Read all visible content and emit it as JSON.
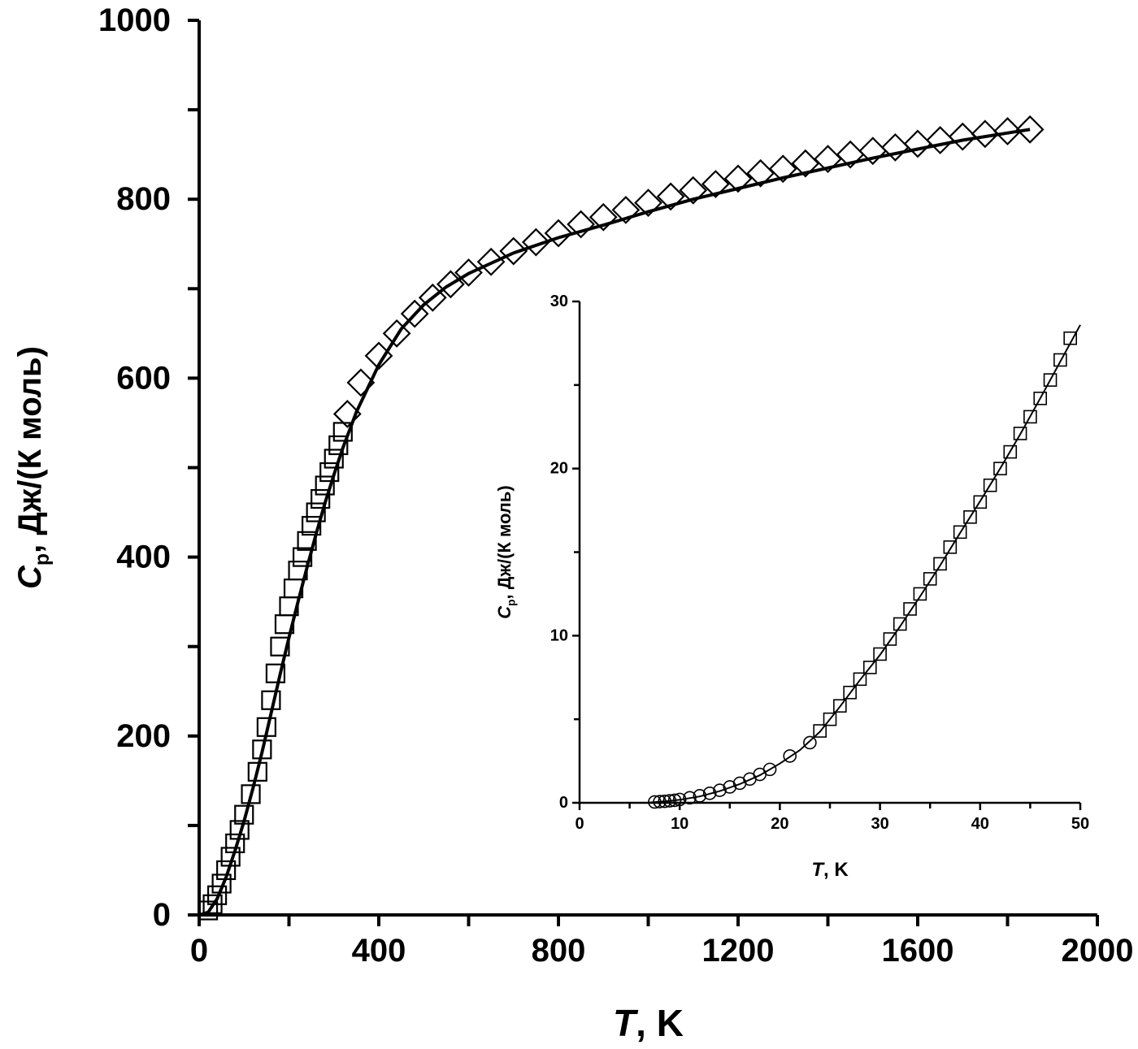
{
  "chart_data": [
    {
      "id": "main",
      "type": "scatter",
      "title": "",
      "xlabel_symbol": "T",
      "xlabel_rest": ", K",
      "ylabel_symbol": "C",
      "ylabel_sub": "p",
      "ylabel_rest": ", Дж/(К моль)",
      "xlim": [
        0,
        2000
      ],
      "ylim": [
        0,
        1000
      ],
      "xticks": [
        0,
        400,
        800,
        1200,
        1600,
        2000
      ],
      "xtick_labels": [
        "0",
        "400",
        "800",
        "1200",
        "1600",
        "2000"
      ],
      "xminor": [
        200,
        600,
        1000,
        1400,
        1800
      ],
      "yticks": [
        0,
        200,
        400,
        600,
        800,
        1000
      ],
      "ytick_labels": [
        "0",
        "200",
        "400",
        "600",
        "800",
        "1000"
      ],
      "yminor": [
        100,
        300,
        500,
        700,
        900
      ],
      "grid": false,
      "series": [
        {
          "marker": "square",
          "x": [
            20,
            30,
            40,
            50,
            60,
            70,
            80,
            90,
            100,
            115,
            130,
            140,
            150,
            160,
            170,
            180,
            190,
            200,
            210,
            220,
            230,
            240,
            250,
            260,
            270,
            280,
            290,
            300,
            310,
            320
          ],
          "y": [
            5,
            12,
            22,
            35,
            50,
            65,
            80,
            95,
            112,
            135,
            160,
            185,
            210,
            240,
            270,
            300,
            325,
            345,
            365,
            385,
            400,
            418,
            435,
            450,
            465,
            480,
            495,
            510,
            525,
            540
          ]
        },
        {
          "marker": "diamond",
          "x": [
            330,
            360,
            400,
            440,
            480,
            520,
            560,
            600,
            650,
            700,
            750,
            800,
            850,
            900,
            950,
            1000,
            1050,
            1100,
            1150,
            1200,
            1250,
            1300,
            1350,
            1400,
            1450,
            1500,
            1550,
            1600,
            1650,
            1700,
            1750,
            1800,
            1850
          ],
          "y": [
            560,
            595,
            625,
            650,
            672,
            690,
            705,
            718,
            730,
            742,
            752,
            762,
            772,
            780,
            788,
            796,
            803,
            810,
            817,
            823,
            829,
            834,
            840,
            845,
            850,
            854,
            858,
            862,
            866,
            870,
            873,
            876,
            878
          ]
        }
      ],
      "fit": {
        "x": [
          0,
          20,
          40,
          60,
          80,
          100,
          120,
          140,
          160,
          180,
          200,
          220,
          240,
          260,
          280,
          300,
          320,
          350,
          400,
          450,
          500,
          550,
          600,
          700,
          800,
          900,
          1000,
          1100,
          1200,
          1300,
          1400,
          1500,
          1600,
          1700,
          1800,
          1850
        ],
        "y": [
          0,
          3,
          18,
          42,
          72,
          105,
          142,
          182,
          225,
          268,
          310,
          350,
          388,
          425,
          460,
          492,
          522,
          562,
          615,
          655,
          682,
          702,
          717,
          740,
          757,
          771,
          786,
          800,
          812,
          824,
          835,
          846,
          856,
          866,
          874,
          878
        ]
      }
    },
    {
      "id": "inset",
      "type": "scatter",
      "title": "",
      "xlabel_symbol": "T",
      "xlabel_rest": ", K",
      "ylabel_symbol": "C",
      "ylabel_sub": "p",
      "ylabel_rest": ", Дж/(К моль)",
      "xlim": [
        0,
        50
      ],
      "ylim": [
        0,
        30
      ],
      "xticks": [
        0,
        10,
        20,
        30,
        40,
        50
      ],
      "xtick_labels": [
        "0",
        "10",
        "20",
        "30",
        "40",
        "50"
      ],
      "xminor": [
        5,
        15,
        25,
        35,
        45
      ],
      "yticks": [
        0,
        10,
        20,
        30
      ],
      "ytick_labels": [
        "0",
        "10",
        "20",
        "30"
      ],
      "yminor": [
        5,
        15,
        25
      ],
      "grid": false,
      "series": [
        {
          "marker": "circle",
          "x": [
            7.5,
            8,
            8.5,
            9,
            9.5,
            10,
            11,
            12,
            13,
            14,
            15,
            16,
            17,
            18,
            19,
            21,
            23
          ],
          "y": [
            0.05,
            0.07,
            0.09,
            0.12,
            0.15,
            0.2,
            0.3,
            0.42,
            0.57,
            0.75,
            0.95,
            1.17,
            1.42,
            1.7,
            2.0,
            2.8,
            3.6
          ]
        },
        {
          "marker": "square",
          "x": [
            24,
            25,
            26,
            27,
            28,
            29,
            30,
            31,
            32,
            33,
            34,
            35,
            36,
            37,
            38,
            39,
            40,
            41,
            42,
            43,
            44,
            45,
            46,
            47,
            48,
            49
          ],
          "y": [
            4.3,
            5.0,
            5.8,
            6.6,
            7.4,
            8.1,
            8.9,
            9.8,
            10.7,
            11.6,
            12.5,
            13.4,
            14.3,
            15.3,
            16.2,
            17.1,
            18.0,
            19.0,
            20.0,
            21.0,
            22.1,
            23.1,
            24.2,
            25.3,
            26.5,
            27.8
          ]
        }
      ],
      "fit": {
        "x": [
          7,
          8,
          9,
          10,
          12,
          14,
          16,
          18,
          20,
          22,
          24,
          26,
          28,
          30,
          32,
          34,
          36,
          38,
          40,
          42,
          44,
          46,
          48,
          50
        ],
        "y": [
          0.02,
          0.06,
          0.11,
          0.18,
          0.38,
          0.7,
          1.12,
          1.65,
          2.35,
          3.15,
          4.25,
          5.75,
          7.35,
          8.85,
          10.55,
          12.35,
          14.2,
          16.15,
          18.05,
          20.0,
          22.05,
          24.2,
          26.4,
          28.6
        ]
      }
    }
  ]
}
